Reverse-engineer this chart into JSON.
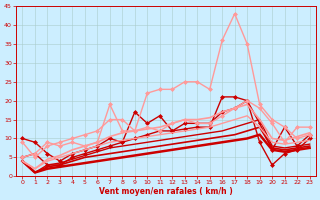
{
  "xlabel": "Vent moyen/en rafales ( km/h )",
  "xlim": [
    -0.5,
    23.5
  ],
  "ylim": [
    0,
    45
  ],
  "yticks": [
    0,
    5,
    10,
    15,
    20,
    25,
    30,
    35,
    40,
    45
  ],
  "xticks": [
    0,
    1,
    2,
    3,
    4,
    5,
    6,
    7,
    8,
    9,
    10,
    11,
    12,
    13,
    14,
    15,
    16,
    17,
    18,
    19,
    20,
    21,
    22,
    23
  ],
  "bg_color": "#cceeff",
  "grid_color": "#aacccc",
  "lines": [
    {
      "x": [
        0,
        1,
        2,
        3,
        4,
        5,
        6,
        7,
        8,
        9,
        10,
        11,
        12,
        13,
        14,
        15,
        16,
        17,
        18,
        19,
        20,
        21,
        22,
        23
      ],
      "y": [
        4,
        1,
        2,
        2.5,
        3,
        3.5,
        4,
        4.5,
        5,
        5.5,
        6,
        6.5,
        7,
        7.5,
        8,
        8.5,
        9,
        9.5,
        10,
        11,
        7,
        6.5,
        7,
        7.5
      ],
      "color": "#cc0000",
      "lw": 1.8,
      "marker": null,
      "alpha": 1.0
    },
    {
      "x": [
        0,
        1,
        2,
        3,
        4,
        5,
        6,
        7,
        8,
        9,
        10,
        11,
        12,
        13,
        14,
        15,
        16,
        17,
        18,
        19,
        20,
        21,
        22,
        23
      ],
      "y": [
        4,
        1,
        2.5,
        3,
        4,
        5,
        5.5,
        6,
        6.5,
        7,
        7.5,
        8,
        8.5,
        9,
        9.5,
        10,
        10.5,
        11,
        12,
        13,
        7.5,
        7,
        7.5,
        8
      ],
      "color": "#cc0000",
      "lw": 1.2,
      "marker": null,
      "alpha": 1.0
    },
    {
      "x": [
        0,
        1,
        2,
        3,
        4,
        5,
        6,
        7,
        8,
        9,
        10,
        11,
        12,
        13,
        14,
        15,
        16,
        17,
        18,
        19,
        20,
        21,
        22,
        23
      ],
      "y": [
        4,
        1,
        3,
        3.5,
        4.5,
        5.5,
        6.5,
        7.5,
        8,
        8.5,
        9,
        9.5,
        10,
        10.5,
        11,
        11.5,
        12,
        13,
        14,
        15,
        8,
        7.5,
        8,
        8.5
      ],
      "color": "#cc0000",
      "lw": 1.0,
      "marker": null,
      "alpha": 1.0
    },
    {
      "x": [
        0,
        1,
        2,
        3,
        4,
        5,
        6,
        7,
        8,
        9,
        10,
        11,
        12,
        13,
        14,
        15,
        16,
        17,
        18,
        19,
        20,
        21,
        22,
        23
      ],
      "y": [
        5,
        6,
        3,
        3,
        5,
        6,
        7,
        8,
        9,
        10,
        11,
        12,
        12,
        12.5,
        13,
        13,
        21,
        21,
        20,
        9,
        3,
        6,
        7,
        10
      ],
      "color": "#cc0000",
      "lw": 1.0,
      "marker": "D",
      "marker_size": 2,
      "alpha": 1.0
    },
    {
      "x": [
        0,
        1,
        2,
        3,
        4,
        5,
        6,
        7,
        8,
        9,
        10,
        11,
        12,
        13,
        14,
        15,
        16,
        17,
        18,
        19,
        20,
        21,
        22,
        23
      ],
      "y": [
        10,
        9,
        6,
        4,
        6,
        7,
        8,
        10,
        9,
        17,
        14,
        16,
        12,
        14,
        14,
        14,
        17,
        18,
        20,
        14,
        7,
        13,
        8,
        11
      ],
      "color": "#cc0000",
      "lw": 1.0,
      "marker": "D",
      "marker_size": 2,
      "alpha": 1.0
    },
    {
      "x": [
        0,
        1,
        2,
        3,
        4,
        5,
        6,
        7,
        8,
        9,
        10,
        11,
        12,
        13,
        14,
        15,
        16,
        17,
        18,
        19,
        20,
        21,
        22,
        23
      ],
      "y": [
        4,
        2,
        4,
        5,
        6,
        7,
        8,
        9,
        9.5,
        10,
        10.5,
        11,
        11.5,
        12,
        12.5,
        13,
        14,
        15,
        16,
        13,
        9,
        8.5,
        9,
        9.5
      ],
      "color": "#ff9999",
      "lw": 1.0,
      "marker": null,
      "alpha": 1.0
    },
    {
      "x": [
        0,
        1,
        2,
        3,
        4,
        5,
        6,
        7,
        8,
        9,
        10,
        11,
        12,
        13,
        14,
        15,
        16,
        17,
        18,
        19,
        20,
        21,
        22,
        23
      ],
      "y": [
        4,
        2,
        4.5,
        5.5,
        7,
        8,
        9,
        10.5,
        11.5,
        12,
        12.5,
        13,
        14,
        15,
        15,
        15.5,
        17,
        18,
        19,
        15,
        10,
        9.5,
        10.5,
        11.5
      ],
      "color": "#ff9999",
      "lw": 1.2,
      "marker": null,
      "alpha": 1.0
    },
    {
      "x": [
        0,
        1,
        2,
        3,
        4,
        5,
        6,
        7,
        8,
        9,
        10,
        11,
        12,
        13,
        14,
        15,
        16,
        17,
        18,
        19,
        20,
        21,
        22,
        23
      ],
      "y": [
        9,
        5,
        8,
        9,
        10,
        11,
        12,
        15,
        15,
        12,
        22,
        23,
        23,
        25,
        25,
        23,
        36,
        43,
        35,
        19,
        15,
        13,
        10,
        11
      ],
      "color": "#ff9999",
      "lw": 1.0,
      "marker": "D",
      "marker_size": 2,
      "alpha": 1.0
    },
    {
      "x": [
        0,
        1,
        2,
        3,
        4,
        5,
        6,
        7,
        8,
        9,
        10,
        11,
        12,
        13,
        14,
        15,
        16,
        17,
        18,
        19,
        20,
        21,
        22,
        23
      ],
      "y": [
        5,
        6,
        9,
        8,
        9,
        8,
        9,
        19,
        12,
        12,
        13,
        12,
        14,
        15,
        14,
        14,
        16,
        18,
        20,
        18,
        14,
        9,
        13,
        13
      ],
      "color": "#ff9999",
      "lw": 1.0,
      "marker": "D",
      "marker_size": 2,
      "alpha": 1.0
    }
  ]
}
